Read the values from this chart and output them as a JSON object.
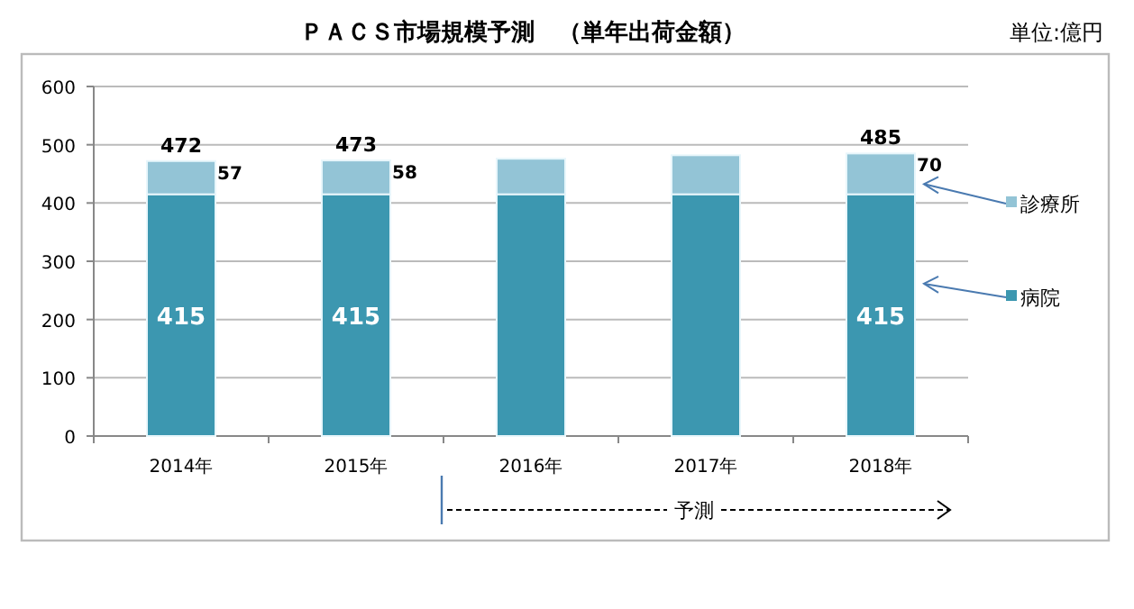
{
  "chart_data": {
    "type": "bar",
    "stacked": true,
    "title": "ＰＡＣＳ市場規模予測　（単年出荷金額）",
    "categories": [
      "2014年",
      "2015年",
      "2016年",
      "2017年",
      "2018年"
    ],
    "series": [
      {
        "name": "病院",
        "color": "#3c97b0",
        "values": [
          415,
          415,
          415,
          415,
          415
        ],
        "value_labels": [
          "415",
          "415",
          null,
          null,
          "415"
        ]
      },
      {
        "name": "診療所",
        "color": "#93c4d6",
        "values": [
          57,
          58,
          61,
          67,
          70
        ],
        "value_labels": [
          "57",
          "58",
          null,
          null,
          "70"
        ]
      }
    ],
    "totals": [
      "472",
      "473",
      null,
      null,
      "485"
    ],
    "ylim": [
      0,
      600
    ],
    "yticks": [
      0,
      100,
      200,
      300,
      400,
      500,
      600
    ],
    "grid": "y",
    "legend": "right",
    "annotations": [
      "単位:億円",
      "予測"
    ]
  }
}
